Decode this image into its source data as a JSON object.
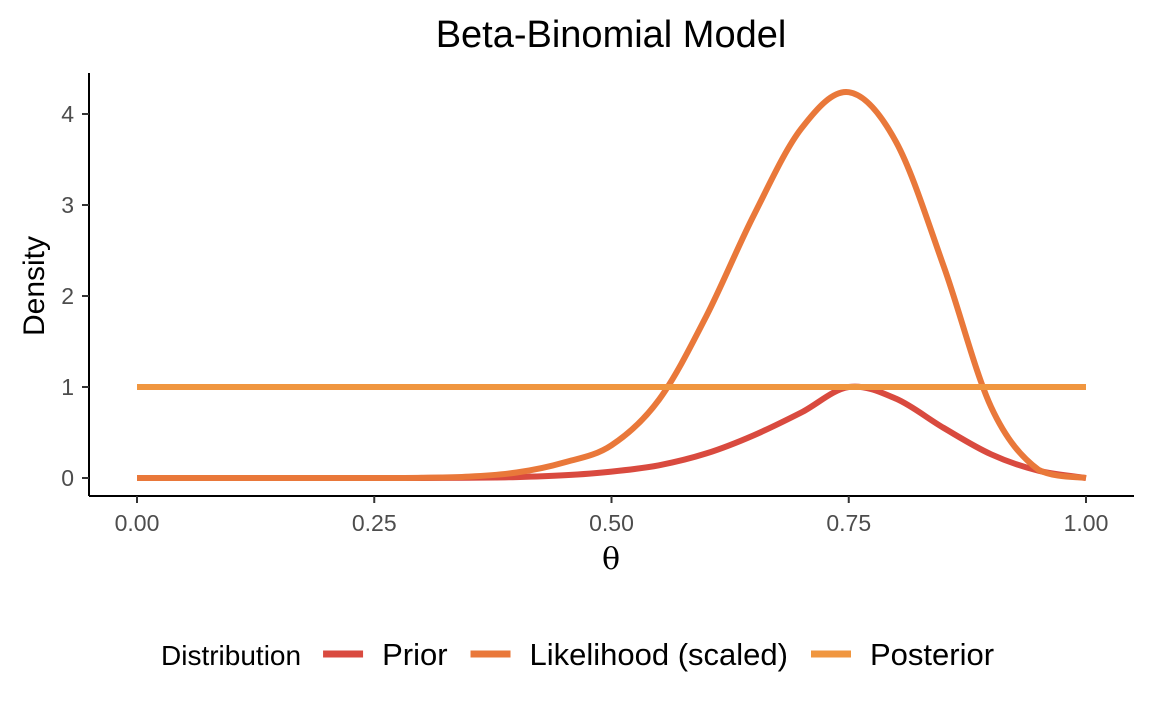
{
  "chart_data": {
    "type": "line",
    "title": "Beta-Binomial Model",
    "xlabel": "θ",
    "ylabel": "Density",
    "xlim": [
      0,
      1
    ],
    "ylim": [
      0,
      4.4
    ],
    "x_ticks": [
      "0.00",
      "0.25",
      "0.50",
      "0.75",
      "1.00"
    ],
    "y_ticks": [
      "0",
      "1",
      "2",
      "3",
      "4"
    ],
    "grid": false,
    "legend": {
      "title": "Distribution",
      "position": "bottom",
      "entries": [
        "Prior",
        "Likelihood (scaled)",
        "Posterior"
      ]
    },
    "x": [
      0.0,
      0.05,
      0.1,
      0.15,
      0.2,
      0.25,
      0.3,
      0.35,
      0.4,
      0.45,
      0.5,
      0.55,
      0.6,
      0.65,
      0.7,
      0.75,
      0.8,
      0.85,
      0.9,
      0.95,
      1.0
    ],
    "series": [
      {
        "name": "Prior",
        "color": "#d94a3f",
        "values": [
          0,
          0,
          0,
          0,
          0,
          0,
          0,
          0.003,
          0.01,
          0.03,
          0.07,
          0.14,
          0.27,
          0.47,
          0.72,
          1.0,
          0.87,
          0.55,
          0.26,
          0.08,
          0
        ]
      },
      {
        "name": "Likelihood (scaled)",
        "color": "#e9783a",
        "values": [
          0,
          0,
          0,
          0,
          0,
          0,
          0.003,
          0.015,
          0.06,
          0.17,
          0.36,
          0.86,
          1.78,
          2.89,
          3.84,
          4.24,
          3.69,
          2.33,
          0.78,
          0.09,
          0
        ]
      },
      {
        "name": "Posterior",
        "color": "#f0963f",
        "values": [
          1,
          1,
          1,
          1,
          1,
          1,
          1,
          1,
          1,
          1,
          1,
          1,
          1,
          1,
          1,
          1,
          1,
          1,
          1,
          1,
          1
        ]
      }
    ]
  }
}
